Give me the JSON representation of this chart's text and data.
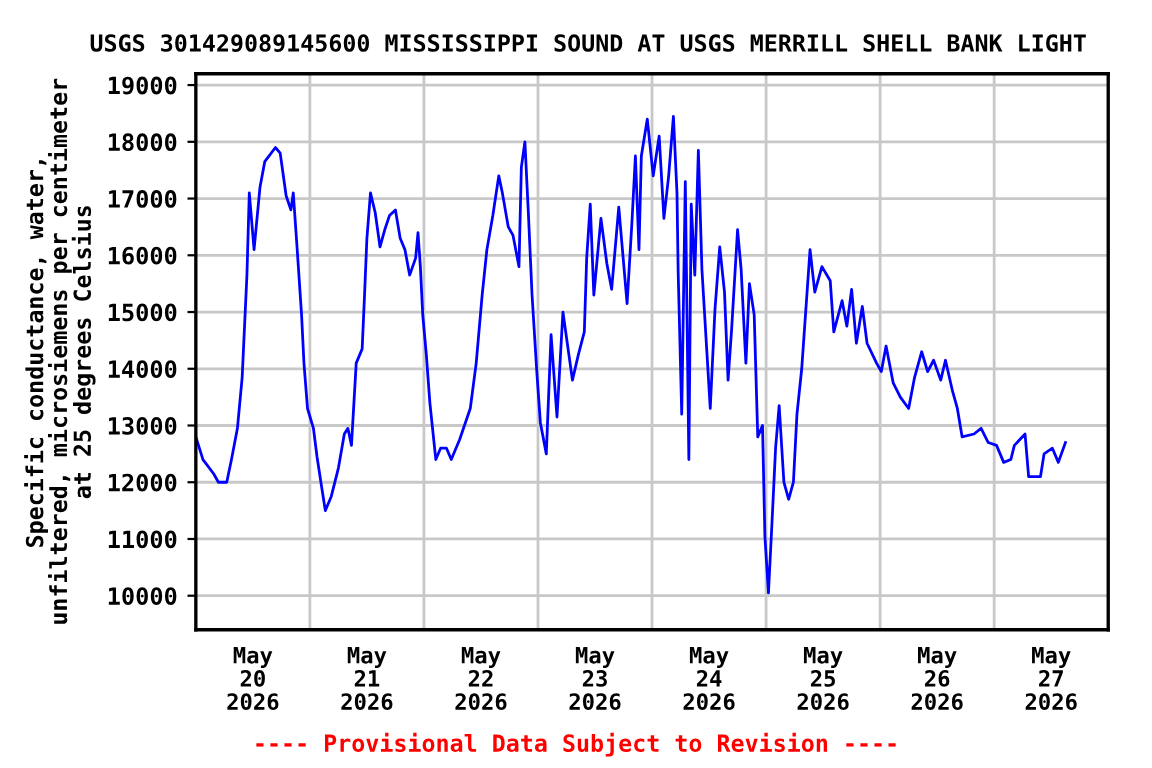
{
  "chart_data": {
    "type": "line",
    "title": "USGS 301429089145600 MISSISSIPPI SOUND AT USGS MERRILL SHELL BANK LIGHT",
    "ylabel": "Specific conductance, water,\nunfiltered, microsiemens per centimeter\nat 25 degrees Celsius",
    "annotations": [
      "---- Provisional Data Subject to Revision ----"
    ],
    "xlim": [
      "2026-05-20T00:00",
      "2026-05-28T00:00"
    ],
    "xticks": [
      {
        "value": "2026-05-21T00:00",
        "label": null
      },
      {
        "value": "2026-05-22T00:00",
        "label": null
      },
      {
        "value": "2026-05-23T00:00",
        "label": null
      },
      {
        "value": "2026-05-24T00:00",
        "label": null
      },
      {
        "value": "2026-05-25T00:00",
        "label": null
      },
      {
        "value": "2026-05-26T00:00",
        "label": null
      },
      {
        "value": "2026-05-27T00:00",
        "label": null
      },
      {
        "value": "2026-05-20T12:00",
        "label": "May\n20\n2026"
      },
      {
        "value": "2026-05-21T12:00",
        "label": "May\n21\n2026"
      },
      {
        "value": "2026-05-22T12:00",
        "label": "May\n22\n2026"
      },
      {
        "value": "2026-05-23T12:00",
        "label": "May\n23\n2026"
      },
      {
        "value": "2026-05-24T12:00",
        "label": "May\n24\n2026"
      },
      {
        "value": "2026-05-25T12:00",
        "label": "May\n25\n2026"
      },
      {
        "value": "2026-05-26T12:00",
        "label": "May\n26\n2026"
      },
      {
        "value": "2026-05-27T12:00",
        "label": "May\n27\n2026"
      }
    ],
    "ylim": [
      9400,
      19200
    ],
    "yticks": [
      10000,
      11000,
      12000,
      13000,
      14000,
      15000,
      16000,
      17000,
      18000,
      19000
    ],
    "grid": true,
    "marker": "none",
    "line_style": "solid",
    "series": [
      {
        "color": "#0000ff",
        "x": [
          "2026-05-20T00:00",
          "2026-05-20T01:30",
          "2026-05-20T03:45",
          "2026-05-20T04:45",
          "2026-05-20T06:30",
          "2026-05-20T07:30",
          "2026-05-20T08:45",
          "2026-05-20T09:45",
          "2026-05-20T10:45",
          "2026-05-20T11:15",
          "2026-05-20T12:15",
          "2026-05-20T13:30",
          "2026-05-20T14:30",
          "2026-05-20T16:45",
          "2026-05-20T17:45",
          "2026-05-20T19:00",
          "2026-05-20T20:00",
          "2026-05-20T20:30",
          "2026-05-20T21:15",
          "2026-05-20T22:15",
          "2026-05-20T22:45",
          "2026-05-20T23:30",
          "2026-05-21T00:45",
          "2026-05-21T01:30",
          "2026-05-21T02:30",
          "2026-05-21T03:15",
          "2026-05-21T04:30",
          "2026-05-21T06:00",
          "2026-05-21T07:15",
          "2026-05-21T08:00",
          "2026-05-21T08:45",
          "2026-05-21T09:45",
          "2026-05-21T11:00",
          "2026-05-21T11:30",
          "2026-05-21T12:00",
          "2026-05-21T12:45",
          "2026-05-21T13:45",
          "2026-05-21T14:45",
          "2026-05-21T15:45",
          "2026-05-21T16:45",
          "2026-05-21T18:00",
          "2026-05-21T19:00",
          "2026-05-21T20:00",
          "2026-05-21T21:00",
          "2026-05-21T22:15",
          "2026-05-21T22:45",
          "2026-05-21T23:15",
          "2026-05-21T23:45",
          "2026-05-22T00:30",
          "2026-05-22T01:15",
          "2026-05-22T02:30",
          "2026-05-22T03:30",
          "2026-05-22T04:45",
          "2026-05-22T05:45",
          "2026-05-22T07:30",
          "2026-05-22T09:45",
          "2026-05-22T11:00",
          "2026-05-22T12:15",
          "2026-05-22T13:15",
          "2026-05-22T14:30",
          "2026-05-22T15:45",
          "2026-05-22T16:30",
          "2026-05-22T17:45",
          "2026-05-22T18:45",
          "2026-05-22T20:00",
          "2026-05-22T20:30",
          "2026-05-22T21:15",
          "2026-05-22T22:00",
          "2026-05-22T22:45",
          "2026-05-22T23:45",
          "2026-05-23T00:30",
          "2026-05-23T01:45",
          "2026-05-23T02:45",
          "2026-05-23T04:00",
          "2026-05-23T05:15",
          "2026-05-23T07:15",
          "2026-05-23T08:30",
          "2026-05-23T09:45",
          "2026-05-23T10:15",
          "2026-05-23T11:00",
          "2026-05-23T11:45",
          "2026-05-23T13:15",
          "2026-05-23T14:30",
          "2026-05-23T15:30",
          "2026-05-23T17:00",
          "2026-05-23T18:45",
          "2026-05-23T19:45",
          "2026-05-23T20:30",
          "2026-05-23T21:15",
          "2026-05-23T21:45",
          "2026-05-23T23:00",
          "2026-05-24T00:15",
          "2026-05-24T01:30",
          "2026-05-24T02:30",
          "2026-05-24T03:30",
          "2026-05-24T04:30",
          "2026-05-24T05:15",
          "2026-05-24T05:30",
          "2026-05-24T06:15",
          "2026-05-24T07:00",
          "2026-05-24T07:45",
          "2026-05-24T08:15",
          "2026-05-24T09:00",
          "2026-05-24T09:45",
          "2026-05-24T10:30",
          "2026-05-24T11:30",
          "2026-05-24T12:15",
          "2026-05-24T13:15",
          "2026-05-24T14:15",
          "2026-05-24T15:15",
          "2026-05-24T16:00",
          "2026-05-24T16:45",
          "2026-05-24T18:00",
          "2026-05-24T18:45",
          "2026-05-24T19:45",
          "2026-05-24T20:30",
          "2026-05-24T21:30",
          "2026-05-24T22:15",
          "2026-05-24T23:15",
          "2026-05-24T23:45",
          "2026-05-25T00:30",
          "2026-05-25T01:15",
          "2026-05-25T02:00",
          "2026-05-25T02:45",
          "2026-05-25T03:45",
          "2026-05-25T04:45",
          "2026-05-25T05:45",
          "2026-05-25T06:30",
          "2026-05-25T07:30",
          "2026-05-25T08:30",
          "2026-05-25T09:15",
          "2026-05-25T10:15",
          "2026-05-25T11:45",
          "2026-05-25T13:30",
          "2026-05-25T14:15",
          "2026-05-25T16:00",
          "2026-05-25T17:00",
          "2026-05-25T18:00",
          "2026-05-25T19:00",
          "2026-05-25T20:15",
          "2026-05-25T21:15",
          "2026-05-25T23:15",
          "2026-05-26T00:15",
          "2026-05-26T01:15",
          "2026-05-26T02:45",
          "2026-05-26T04:15",
          "2026-05-26T06:00",
          "2026-05-26T07:15",
          "2026-05-26T08:45",
          "2026-05-26T10:00",
          "2026-05-26T11:15",
          "2026-05-26T12:45",
          "2026-05-26T13:45",
          "2026-05-26T15:15",
          "2026-05-26T16:15",
          "2026-05-26T17:15",
          "2026-05-26T19:45",
          "2026-05-26T21:15",
          "2026-05-26T22:45",
          "2026-05-27T00:30",
          "2026-05-27T02:00",
          "2026-05-27T03:30",
          "2026-05-27T04:15",
          "2026-05-27T06:30",
          "2026-05-27T07:15",
          "2026-05-27T09:45",
          "2026-05-27T10:30",
          "2026-05-27T12:15",
          "2026-05-27T13:30",
          "2026-05-27T15:00"
        ],
        "values": [
          12800,
          12400,
          12150,
          12000,
          12000,
          12400,
          12950,
          13850,
          15650,
          17100,
          16100,
          17200,
          17650,
          17900,
          17800,
          17050,
          16800,
          17100,
          16200,
          14950,
          14100,
          13300,
          12950,
          12450,
          11900,
          11500,
          11750,
          12250,
          12850,
          12950,
          12650,
          14100,
          14350,
          15300,
          16300,
          17100,
          16750,
          16150,
          16450,
          16700,
          16800,
          16300,
          16100,
          15650,
          15950,
          16400,
          15800,
          14950,
          14250,
          13400,
          12400,
          12600,
          12600,
          12400,
          12750,
          13300,
          14100,
          15300,
          16100,
          16700,
          17400,
          17100,
          16500,
          16350,
          15800,
          17550,
          18000,
          16700,
          15300,
          13950,
          13050,
          12500,
          14600,
          13150,
          15000,
          13800,
          14250,
          14650,
          15950,
          16900,
          15300,
          16650,
          15850,
          15400,
          16850,
          15150,
          16550,
          17750,
          16100,
          17750,
          18400,
          17400,
          18100,
          16650,
          17400,
          18450,
          17100,
          15700,
          13200,
          17300,
          12400,
          16900,
          15650,
          17850,
          15750,
          14350,
          13300,
          15050,
          16150,
          15350,
          13800,
          14700,
          16450,
          15750,
          14100,
          15500,
          14950,
          12800,
          13000,
          11050,
          10050,
          11300,
          12600,
          13350,
          12000,
          11700,
          12000,
          13200,
          14000,
          15200,
          16100,
          15350,
          15800,
          15550,
          14650,
          15200,
          14750,
          15400,
          14450,
          15100,
          14450,
          14100,
          13950,
          14400,
          13750,
          13500,
          13300,
          13850,
          14300,
          13950,
          14150,
          13800,
          14150,
          13600,
          13300,
          12800,
          12850,
          12950,
          12700,
          12650,
          12350,
          12400,
          12650,
          12850,
          12100,
          12100,
          12500,
          12600,
          12350,
          12700
        ]
      }
    ]
  }
}
